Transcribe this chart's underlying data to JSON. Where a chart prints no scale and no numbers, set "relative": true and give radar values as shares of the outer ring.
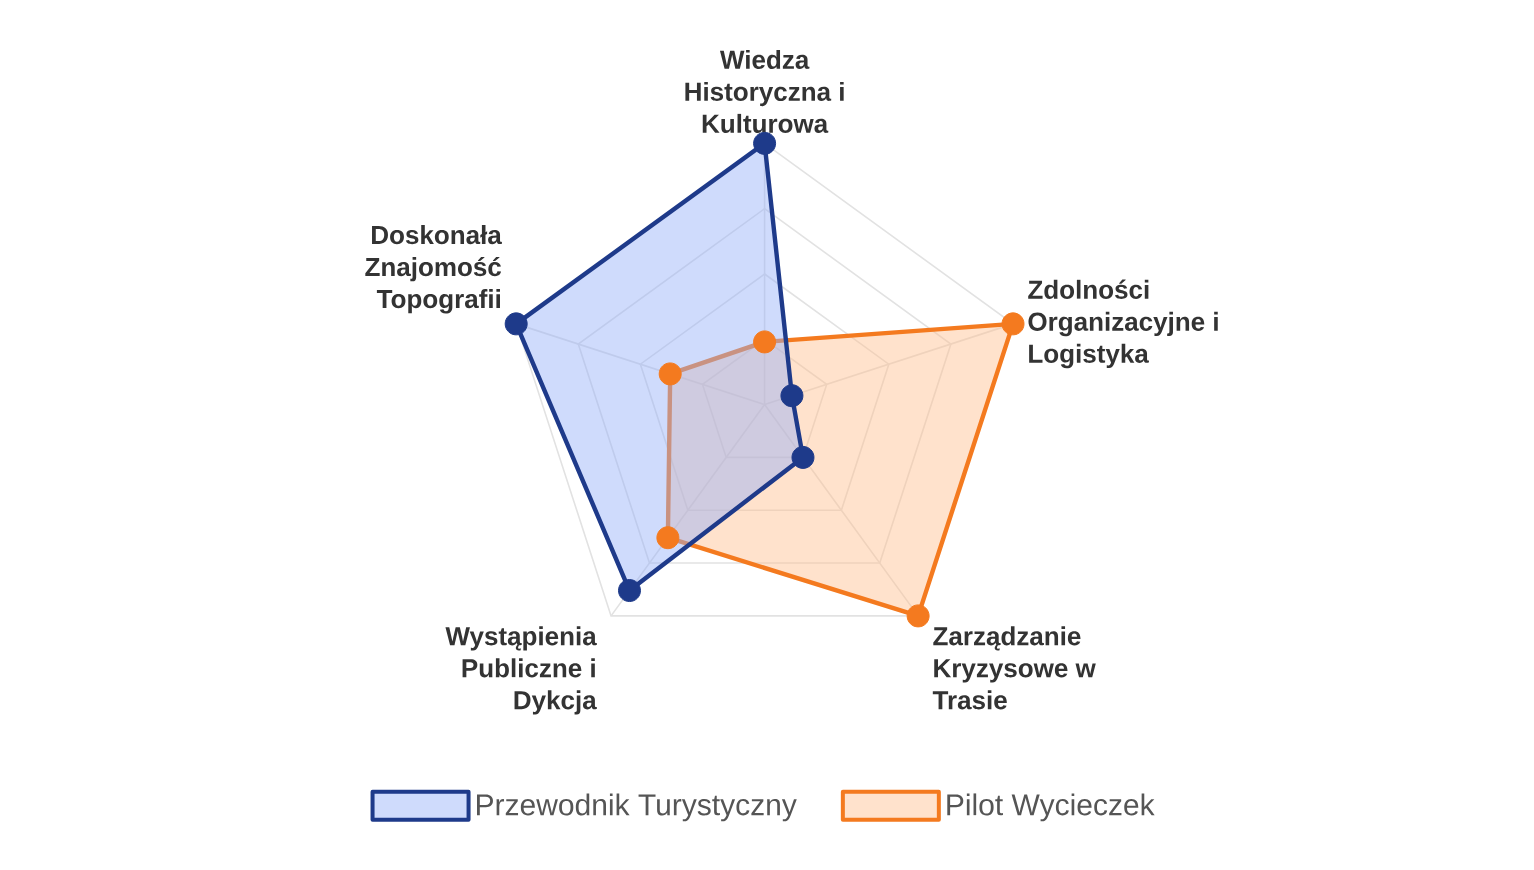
{
  "chart_data": {
    "type": "radar",
    "relative": true,
    "categories": [
      "Wiedza Historyczna i Kulturowa",
      "Zdolności Organizacyjne i Logistyka",
      "Zarządzanie Kryzysowe w Trasie",
      "Wystąpienia Publiczne i Dykcja",
      "Doskonała Znajomość Topografii"
    ],
    "series": [
      {
        "name": "Przewodnik Turystyczny",
        "color": "#1e3a8a",
        "values": [
          1,
          0.11,
          0.25,
          0.88,
          1
        ]
      },
      {
        "name": "Pilot Wycieczek",
        "color": "#f47a1f",
        "values": [
          0.24,
          1,
          1,
          0.63,
          0.38
        ]
      }
    ],
    "grid": true,
    "legend": "bottom",
    "marker": "circle"
  }
}
